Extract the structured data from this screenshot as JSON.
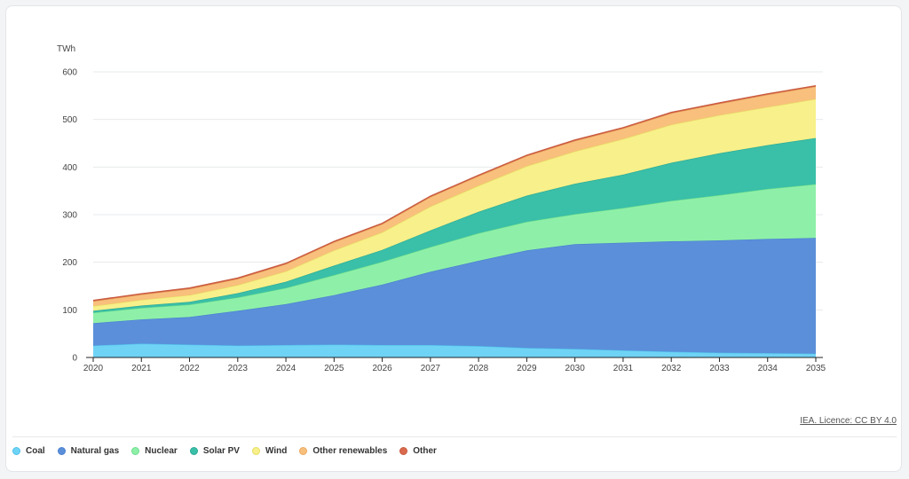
{
  "source_text": "IEA. Licence: CC BY 4.0",
  "chart_data": {
    "type": "area",
    "stacked": true,
    "unit_label": "TWh",
    "x": [
      2020,
      2021,
      2022,
      2023,
      2024,
      2025,
      2026,
      2027,
      2028,
      2029,
      2030,
      2031,
      2032,
      2033,
      2034,
      2035
    ],
    "ylim": [
      0,
      600
    ],
    "yticks": [
      0,
      100,
      200,
      300,
      400,
      500,
      600
    ],
    "grid": true,
    "legend_position": "bottom-left",
    "series": [
      {
        "name": "Coal",
        "color": "#6fd3f5",
        "stroke": "#4fc0ea",
        "values": [
          25,
          29,
          27,
          25,
          26,
          27,
          26,
          26,
          24,
          20,
          18,
          15,
          12,
          10,
          9,
          8
        ]
      },
      {
        "name": "Natural gas",
        "color": "#5b8fda",
        "stroke": "#4a7fcf",
        "values": [
          47,
          51,
          58,
          73,
          86,
          104,
          127,
          154,
          179,
          205,
          220,
          226,
          232,
          236,
          240,
          243
        ]
      },
      {
        "name": "Nuclear",
        "color": "#8ef0a8",
        "stroke": "#6cdc8c",
        "values": [
          22,
          24,
          26,
          28,
          34,
          42,
          48,
          52,
          58,
          60,
          63,
          73,
          85,
          95,
          105,
          113
        ]
      },
      {
        "name": "Solar PV",
        "color": "#3abfa8",
        "stroke": "#2aa994",
        "values": [
          4,
          5,
          6,
          9,
          13,
          20,
          25,
          35,
          45,
          55,
          64,
          70,
          80,
          88,
          92,
          97
        ]
      },
      {
        "name": "Wind",
        "color": "#f8f08a",
        "stroke": "#e6dc60",
        "values": [
          10,
          12,
          14,
          17,
          22,
          32,
          37,
          50,
          55,
          62,
          68,
          75,
          80,
          80,
          80,
          82
        ]
      },
      {
        "name": "Other renewables",
        "color": "#f8c07c",
        "stroke": "#e8a860",
        "values": [
          10,
          11,
          13,
          13,
          15,
          17,
          17,
          20,
          20,
          21,
          22,
          22,
          24,
          24,
          26,
          26
        ]
      },
      {
        "name": "Other",
        "color": "#d96a4d",
        "stroke": "#c85a3e",
        "values": [
          2,
          2,
          2,
          2,
          2,
          2,
          2,
          2,
          2,
          2,
          2,
          2,
          2,
          2,
          2,
          2
        ]
      }
    ]
  }
}
